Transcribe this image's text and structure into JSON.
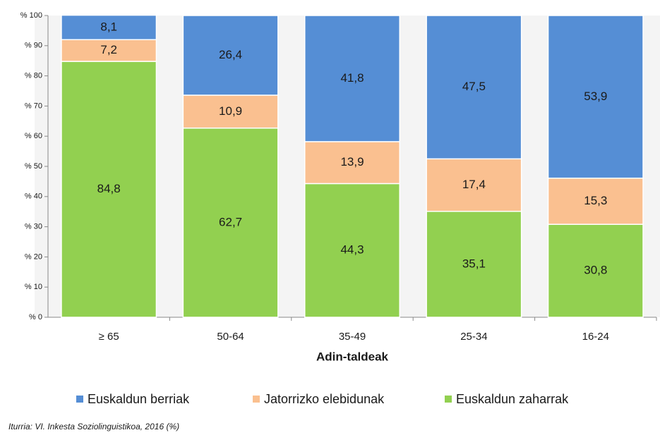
{
  "chart_data": {
    "type": "stacked_bar",
    "x_label": "Adin-taldeak",
    "source": "Iturria: VI. Inkesta Soziolinguistikoa, 2016 (%)",
    "categories": [
      "≥ 65",
      "50-64",
      "35-49",
      "25-34",
      "16-24"
    ],
    "series": [
      {
        "name": "Euskaldun berriak",
        "color": "#558ed5",
        "values": [
          8.1,
          26.4,
          41.8,
          47.5,
          53.9
        ],
        "value_labels": [
          "8,1",
          "26,4",
          "41,8",
          "47,5",
          "53,9"
        ]
      },
      {
        "name": "Jatorrizko elebidunak",
        "color": "#fac090",
        "values": [
          7.2,
          10.9,
          13.9,
          17.4,
          15.3
        ],
        "value_labels": [
          "7,2",
          "10,9",
          "13,9",
          "17,4",
          "15,3"
        ]
      },
      {
        "name": "Euskaldun zaharrak",
        "color": "#92d050",
        "values": [
          84.8,
          62.7,
          44.3,
          35.1,
          30.8
        ],
        "value_labels": [
          "84,8",
          "62,7",
          "44,3",
          "35,1",
          "30,8"
        ]
      }
    ],
    "ylim": [
      0,
      100
    ],
    "yticks": [
      {
        "value": 0,
        "label": "% 0"
      },
      {
        "value": 10,
        "label": "% 10"
      },
      {
        "value": 20,
        "label": "% 20"
      },
      {
        "value": 30,
        "label": "% 30"
      },
      {
        "value": 40,
        "label": "% 40"
      },
      {
        "value": 50,
        "label": "% 50"
      },
      {
        "value": 60,
        "label": "% 60"
      },
      {
        "value": 70,
        "label": "% 70"
      },
      {
        "value": 80,
        "label": "% 80"
      },
      {
        "value": 90,
        "label": "% 90"
      },
      {
        "value": 100,
        "label": "% 100"
      }
    ],
    "legend": "bottom"
  }
}
